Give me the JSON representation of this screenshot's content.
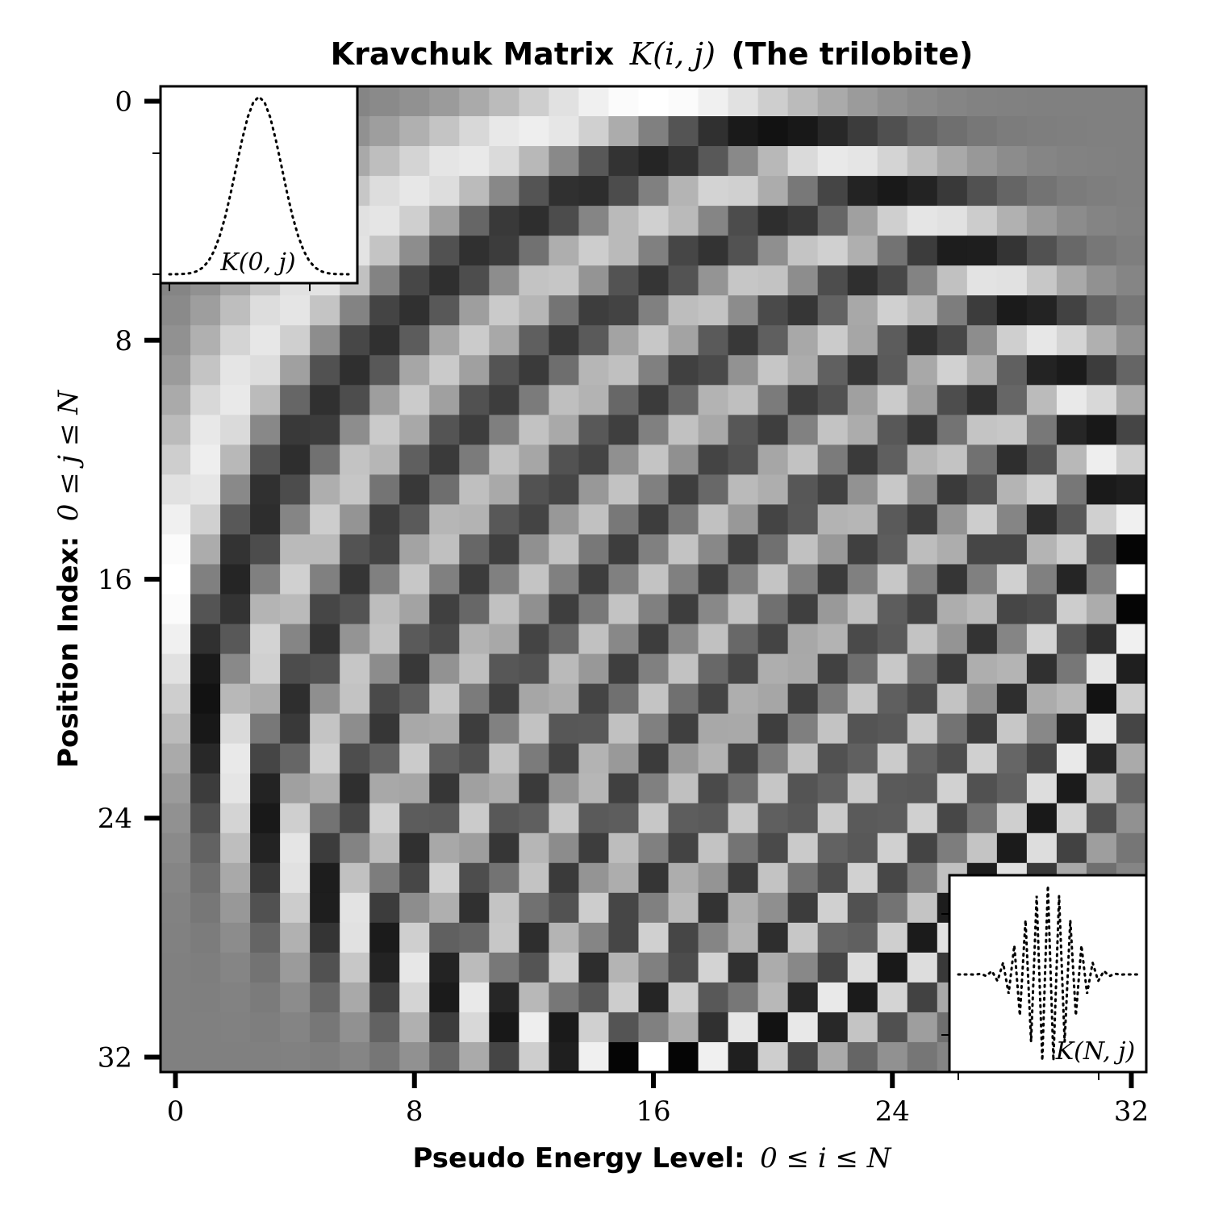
{
  "chart_data": {
    "type": "heatmap",
    "title_text": "Kravchuk Matrix",
    "title_math": "K(i, j)",
    "title_suffix": "(The trilobite)",
    "xlabel_text": "Pseudo Energy Level:",
    "xlabel_math": "0 ≤ i ≤ N",
    "ylabel_text": "Position Index:",
    "ylabel_math": "0 ≤ j ≤ N",
    "N": 32,
    "p": 0.5,
    "colormap": "gray",
    "x_ticks": [
      "0",
      "8",
      "16",
      "24",
      "32"
    ],
    "y_ticks": [
      "0",
      "8",
      "16",
      "24",
      "32"
    ],
    "xlim": [
      0,
      32
    ],
    "ylim": [
      0,
      32
    ],
    "inset_top_label": "K(0, j)",
    "inset_bottom_label": "K(N, j)",
    "inset_line_style": "dotted"
  },
  "colors": {
    "frame": "#000000",
    "background": "#ffffff"
  }
}
